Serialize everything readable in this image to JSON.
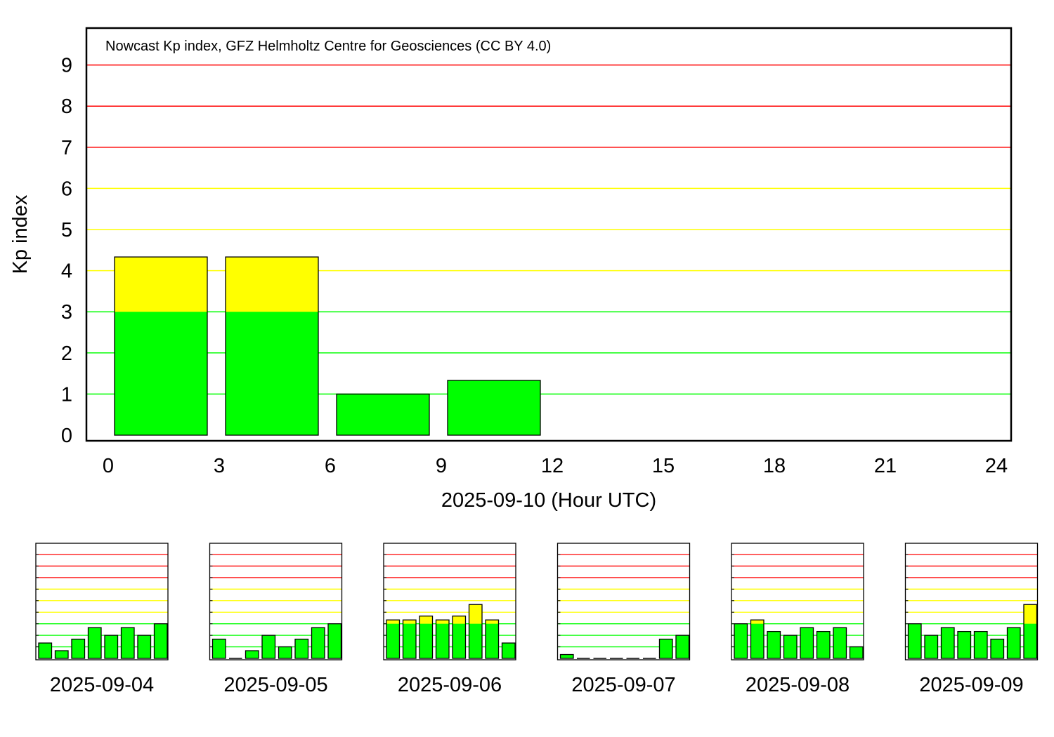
{
  "colors": {
    "green_fill": "#00ff00",
    "yellow_fill": "#ffff00",
    "green_line": "#00ff00",
    "yellow_line": "#ffff00",
    "red_line": "#ff0000",
    "frame": "#000000",
    "bar_outline": "#000000"
  },
  "chart_data": [
    {
      "type": "bar",
      "title": "Nowcast Kp index, GFZ Helmholtz Centre for Geosciences (CC BY 4.0)",
      "xlabel": "2025-09-10 (Hour UTC)",
      "ylabel": "Kp index",
      "xlim": [
        0,
        24
      ],
      "ylim": [
        0,
        9
      ],
      "xticks": [
        "0",
        "3",
        "6",
        "9",
        "12",
        "15",
        "18",
        "21",
        "24"
      ],
      "yticks": [
        "0",
        "1",
        "2",
        "3",
        "4",
        "5",
        "6",
        "7",
        "8",
        "9"
      ],
      "threshold_lines": [
        {
          "value": 1,
          "color": "green"
        },
        {
          "value": 2,
          "color": "green"
        },
        {
          "value": 3,
          "color": "green"
        },
        {
          "value": 4,
          "color": "yellow"
        },
        {
          "value": 5,
          "color": "yellow"
        },
        {
          "value": 6,
          "color": "yellow"
        },
        {
          "value": 7,
          "color": "red"
        },
        {
          "value": 8,
          "color": "red"
        },
        {
          "value": 9,
          "color": "red"
        }
      ],
      "color_rule": "green up to 3, yellow above 3",
      "intervals": [
        "00-03",
        "03-06",
        "06-09",
        "09-12"
      ],
      "values": [
        4.333,
        4.333,
        1.0,
        1.333
      ]
    },
    {
      "type": "bar",
      "xlabel": "2025-09-04",
      "ylim": [
        0,
        9
      ],
      "values": [
        1.333,
        0.667,
        1.667,
        2.667,
        2.0,
        2.667,
        2.0,
        3.0
      ]
    },
    {
      "type": "bar",
      "xlabel": "2025-09-05",
      "ylim": [
        0,
        9
      ],
      "values": [
        1.667,
        0.0,
        0.667,
        2.0,
        1.0,
        1.667,
        2.667,
        3.0
      ]
    },
    {
      "type": "bar",
      "xlabel": "2025-09-06",
      "ylim": [
        0,
        9
      ],
      "values": [
        3.333,
        3.333,
        3.667,
        3.333,
        3.667,
        4.667,
        3.333,
        1.333
      ]
    },
    {
      "type": "bar",
      "xlabel": "2025-09-07",
      "ylim": [
        0,
        9
      ],
      "values": [
        0.333,
        0.0,
        0.0,
        0.0,
        0.0,
        0.0,
        1.667,
        2.0
      ]
    },
    {
      "type": "bar",
      "xlabel": "2025-09-08",
      "ylim": [
        0,
        9
      ],
      "values": [
        3.0,
        3.333,
        2.333,
        2.0,
        2.667,
        2.333,
        2.667,
        1.0
      ]
    },
    {
      "type": "bar",
      "xlabel": "2025-09-09",
      "ylim": [
        0,
        9
      ],
      "values": [
        3.0,
        2.0,
        2.667,
        2.333,
        2.333,
        1.667,
        2.667,
        4.667
      ]
    }
  ]
}
